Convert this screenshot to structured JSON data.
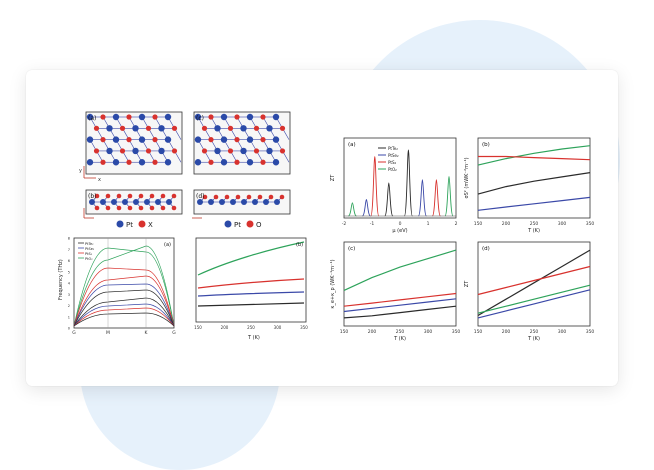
{
  "figure": {
    "structure": {
      "panel_labels": [
        "(a)",
        "(b)",
        "(c)",
        "(d)"
      ],
      "axis_letters": {
        "x": "x",
        "y": "y"
      },
      "legend_left": [
        {
          "symbol_color": "#2b4aa8",
          "label": "Pt"
        },
        {
          "symbol_color": "#d8322e",
          "label": "X"
        }
      ],
      "legend_right": [
        {
          "symbol_color": "#2b4aa8",
          "label": "Pt"
        },
        {
          "symbol_color": "#d8322e",
          "label": "O"
        }
      ]
    },
    "phonon": {
      "panel_label": "(a)",
      "ylabel": "Frequency (THz)",
      "yticks": [
        "0",
        "1",
        "2",
        "3",
        "4",
        "5",
        "6",
        "7",
        "8"
      ],
      "xticks": [
        "G",
        "M",
        "K",
        "G"
      ],
      "legend": [
        "PtTe₂",
        "PtSe₂",
        "PtS₂",
        "PtO₂"
      ]
    },
    "kappa": {
      "panel_label": "(b)",
      "xlabel": "T (K)",
      "xticks": [
        "150",
        "200",
        "250",
        "300",
        "350"
      ]
    },
    "colors": {
      "black": "#2b2b2b",
      "blue": "#3b49a8",
      "red": "#d8322e",
      "green": "#2ea35b"
    }
  },
  "chart_data": [
    {
      "type": "line",
      "panel_label": "(a)",
      "ylabel": "ZT",
      "xlabel": "μ (eV)",
      "xlim": [
        -2,
        2
      ],
      "xticks": [
        "-2",
        "-1",
        "0",
        "1",
        "2"
      ],
      "legend": [
        "PtTe₂",
        "PtSe₂",
        "PtS₂",
        "PtO₂"
      ],
      "peaks": [
        {
          "series": "PtTe₂",
          "color": "black",
          "x": [
            -0.4,
            0.3
          ],
          "y": [
            0.5,
            1.0
          ]
        },
        {
          "series": "PtSe₂",
          "color": "blue",
          "x": [
            -1.2,
            0.8
          ],
          "y": [
            0.25,
            0.55
          ]
        },
        {
          "series": "PtS₂",
          "color": "red",
          "x": [
            -0.9,
            1.3
          ],
          "y": [
            0.9,
            0.55
          ]
        },
        {
          "series": "PtO₂",
          "color": "green",
          "x": [
            -1.7,
            1.75
          ],
          "y": [
            0.2,
            0.6
          ]
        }
      ]
    },
    {
      "type": "line",
      "panel_label": "(b)",
      "ylabel": "σS² (mWK⁻²m⁻¹)",
      "xlabel": "T (K)",
      "xticks": [
        "150",
        "200",
        "250",
        "300",
        "350"
      ],
      "x": [
        150,
        200,
        250,
        300,
        350
      ],
      "series": [
        {
          "color": "green",
          "values": [
            0.72,
            0.78,
            0.83,
            0.87,
            0.9
          ]
        },
        {
          "color": "red",
          "values": [
            0.8,
            0.8,
            0.79,
            0.78,
            0.77
          ]
        },
        {
          "color": "black",
          "values": [
            0.45,
            0.52,
            0.57,
            0.61,
            0.65
          ]
        },
        {
          "color": "blue",
          "values": [
            0.3,
            0.33,
            0.36,
            0.39,
            0.42
          ]
        }
      ]
    },
    {
      "type": "line",
      "panel_label": "(c)",
      "ylabel": "κ_e+κ_p (WK⁻¹m⁻¹)",
      "xlabel": "T (K)",
      "xticks": [
        "150",
        "200",
        "250",
        "300",
        "350"
      ],
      "x": [
        150,
        200,
        250,
        300,
        350
      ],
      "series": [
        {
          "color": "green",
          "values": [
            0.48,
            0.6,
            0.7,
            0.78,
            0.86
          ]
        },
        {
          "color": "red",
          "values": [
            0.33,
            0.36,
            0.39,
            0.42,
            0.45
          ]
        },
        {
          "color": "blue",
          "values": [
            0.28,
            0.31,
            0.34,
            0.37,
            0.4
          ]
        },
        {
          "color": "black",
          "values": [
            0.22,
            0.24,
            0.27,
            0.3,
            0.33
          ]
        }
      ]
    },
    {
      "type": "line",
      "panel_label": "(d)",
      "ylabel": "ZT",
      "xlabel": "T (K)",
      "xticks": [
        "150",
        "200",
        "250",
        "300",
        "350"
      ],
      "x": [
        150,
        200,
        250,
        300,
        350
      ],
      "series": [
        {
          "color": "black",
          "values": [
            0.55,
            0.9,
            1.25,
            1.6,
            1.95
          ]
        },
        {
          "color": "red",
          "values": [
            1.0,
            1.15,
            1.3,
            1.45,
            1.6
          ]
        },
        {
          "color": "green",
          "values": [
            0.6,
            0.75,
            0.9,
            1.05,
            1.2
          ]
        },
        {
          "color": "blue",
          "values": [
            0.5,
            0.65,
            0.8,
            0.95,
            1.1
          ]
        }
      ]
    }
  ]
}
